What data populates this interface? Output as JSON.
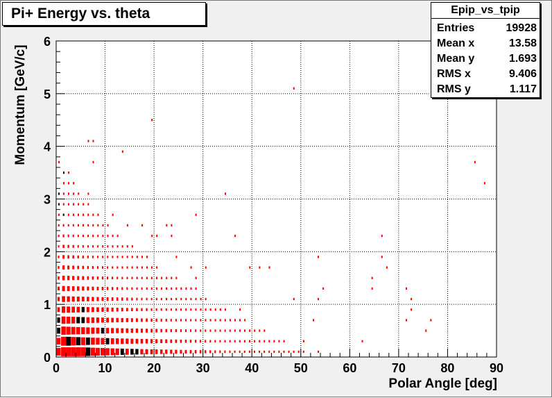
{
  "title": "Pi+ Energy vs. theta",
  "stats": {
    "name": "Epip_vs_tpip",
    "rows": [
      {
        "label": "Entries",
        "value": "19928"
      },
      {
        "label": "Mean x",
        "value": "13.58"
      },
      {
        "label": "Mean y",
        "value": "1.693"
      },
      {
        "label": "RMS x",
        "value": "9.406"
      },
      {
        "label": "RMS y",
        "value": "1.117"
      }
    ]
  },
  "colors": {
    "frame_bg": "#f0f0f0",
    "plot_bg": "#ffffff",
    "marker": "#ff0000",
    "marker_dense": "#000000"
  },
  "chart_data": {
    "type": "heatmap",
    "title": "Pi+ Energy vs. theta",
    "xlabel": "Polar Angle [deg]",
    "ylabel": "Momentum [GeV/c]",
    "xlim": [
      0,
      90
    ],
    "ylim": [
      0,
      6
    ],
    "xticks": [
      "0",
      "10",
      "20",
      "30",
      "40",
      "50",
      "60",
      "70",
      "80",
      "90"
    ],
    "yticks": [
      "0",
      "1",
      "2",
      "3",
      "4",
      "5",
      "6"
    ],
    "grid": true,
    "bins": {
      "x_width": 1,
      "y_width": 0.2
    },
    "entries": 19928,
    "mean_x": 13.58,
    "mean_y": 1.693,
    "rms_x": 9.406,
    "rms_y": 1.117,
    "density_profile": [
      {
        "y_range": [
          0.0,
          0.4
        ],
        "x_extent": 90
      },
      {
        "y_range": [
          0.4,
          1.0
        ],
        "x_extent": 88
      },
      {
        "y_range": [
          1.0,
          1.6
        ],
        "x_extent": 80
      },
      {
        "y_range": [
          1.6,
          2.4
        ],
        "x_extent": 70
      },
      {
        "y_range": [
          2.4,
          3.2
        ],
        "x_extent": 35
      },
      {
        "y_range": [
          3.2,
          4.2
        ],
        "x_extent": 20
      },
      {
        "y_range": [
          4.2,
          6.0
        ],
        "x_extent": 8
      }
    ]
  }
}
